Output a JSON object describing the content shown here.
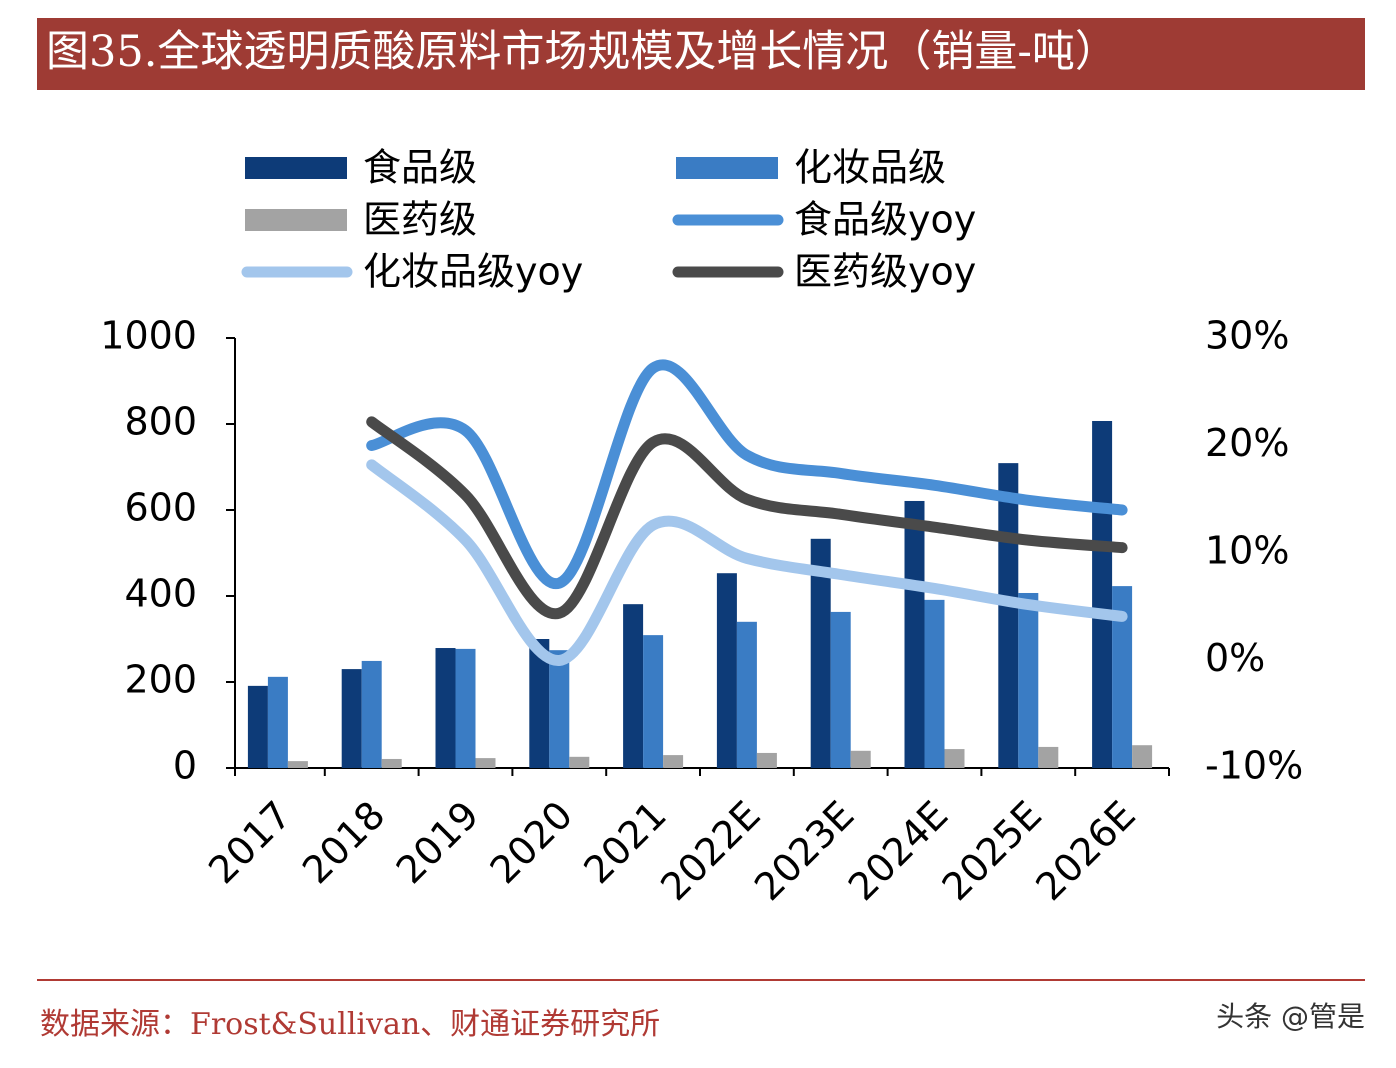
{
  "chart_data": {
    "type": "bar",
    "title": "图35.全球透明质酸原料市场规模及增长情况（销量-吨）",
    "source": "数据来源：Frost&Sullivan、财通证券研究所",
    "watermark": "头条 @管是",
    "categories": [
      "2017",
      "2018",
      "2019",
      "2020",
      "2021",
      "2022E",
      "2023E",
      "2024E",
      "2025E",
      "2026E"
    ],
    "ylim": [
      0,
      1000
    ],
    "yticks": [
      0,
      200,
      400,
      600,
      800,
      1000
    ],
    "y2lim": [
      -10,
      30
    ],
    "y2ticks": [
      {
        "value": -10,
        "label": "-10%"
      },
      {
        "value": 0,
        "label": "0%"
      },
      {
        "value": 10,
        "label": "10%"
      },
      {
        "value": 20,
        "label": "20%"
      },
      {
        "value": 30,
        "label": "30%"
      }
    ],
    "series": [
      {
        "name": "食品级",
        "type": "bar",
        "color": "#0d3b78",
        "values": [
          191,
          230,
          279,
          300,
          381,
          453,
          533,
          621,
          709,
          807
        ]
      },
      {
        "name": "化妆品级",
        "type": "bar",
        "color": "#3a7cc4",
        "values": [
          212,
          249,
          277,
          274,
          309,
          340,
          363,
          391,
          407,
          423
        ]
      },
      {
        "name": "医药级",
        "type": "bar",
        "color": "#a3a3a3",
        "values": [
          16,
          21,
          23,
          26,
          30,
          35,
          40,
          44,
          49,
          53
        ]
      },
      {
        "name": "食品级yoy",
        "type": "line",
        "axis": "y2",
        "color": "#4a8fd6",
        "values": [
          null,
          20.0,
          21.4,
          7.2,
          27.2,
          19.1,
          17.4,
          16.3,
          14.9,
          14.0
        ]
      },
      {
        "name": "化妆品级yoy",
        "type": "line",
        "axis": "y2",
        "color": "#a3c6ec",
        "values": [
          null,
          18.2,
          11.2,
          0,
          12.6,
          9.5,
          8.0,
          6.7,
          5.2,
          4.1
        ]
      },
      {
        "name": "医药级yoy",
        "type": "line",
        "axis": "y2",
        "color": "#4a4a4a",
        "values": [
          null,
          22.2,
          15.4,
          4.4,
          20.3,
          15.0,
          13.6,
          12.4,
          11.2,
          10.5
        ]
      }
    ]
  }
}
